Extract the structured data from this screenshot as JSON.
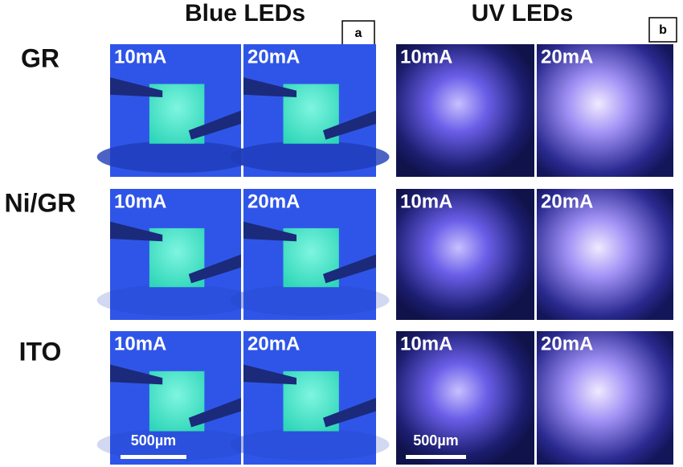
{
  "columns": [
    {
      "title": "Blue LEDs",
      "tag": "a"
    },
    {
      "title": "UV LEDs",
      "tag": "b"
    }
  ],
  "rows": [
    {
      "label": "GR"
    },
    {
      "label": "Ni/GR"
    },
    {
      "label": "ITO"
    }
  ],
  "current_labels": [
    "10mA",
    "20mA"
  ],
  "scale_bar": "500µm"
}
